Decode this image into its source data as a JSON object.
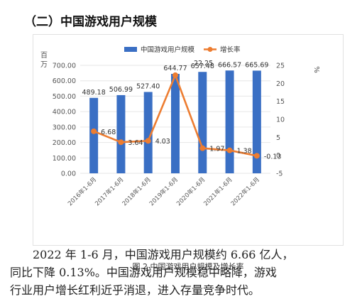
{
  "section_title": "（二）中国游戏用户规模",
  "chart_data": {
    "type": "bar+line",
    "categories": [
      "2016年1-6月",
      "2017年1-6月",
      "2018年1-6月",
      "2019年1-6月",
      "2020年1-6月",
      "2021年1-6月",
      "2022年1-6月"
    ],
    "series": [
      {
        "name": "中国游戏用户规模",
        "type": "bar",
        "axis": "left",
        "color": "#3a6fc4",
        "values": [
          489.18,
          506.99,
          527.4,
          644.77,
          657.48,
          666.57,
          665.69
        ],
        "labels": [
          "489.18",
          "506.99",
          "527.40",
          "644.77",
          "657.48",
          "666.57",
          "665.69"
        ]
      },
      {
        "name": "增长率",
        "type": "line",
        "axis": "right",
        "color": "#ed7d31",
        "values": [
          6.68,
          3.64,
          4.03,
          22.25,
          1.97,
          1.38,
          -0.13
        ],
        "labels": [
          "6.68",
          "3.64",
          "4.03",
          "22.25",
          "1.97",
          "1.38",
          "-0.13"
        ]
      }
    ],
    "ylabel_left": "百万",
    "ylabel_right": "%",
    "ylim_left": [
      0,
      700
    ],
    "ylim_right": [
      -5,
      25
    ],
    "yticks_left": [
      "0.00",
      "100.00",
      "200.00",
      "300.00",
      "400.00",
      "500.00",
      "600.00",
      "700.00"
    ],
    "yticks_right": [
      "-5",
      "0",
      "5",
      "10",
      "15",
      "20",
      "25"
    ],
    "legend_position": "top",
    "caption": "图 2  中国游戏用户规模及增长率"
  },
  "body_lines": [
    "2022 年 1-6 月，中国游戏用户规模约 6.66 亿人，",
    "同比下降 0.13%。中国游戏用户规模稳中略降，游戏",
    "行业用户增长红利近乎消退，进入存量竞争时代。"
  ]
}
